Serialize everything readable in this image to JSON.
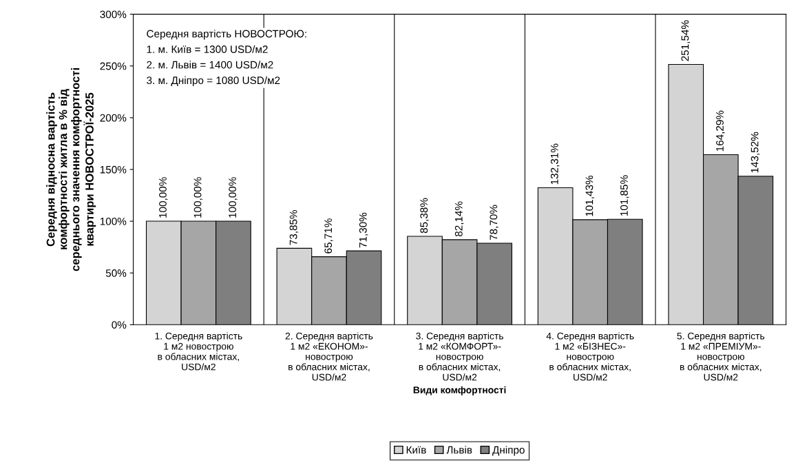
{
  "chart_data": {
    "type": "bar",
    "categories": [
      "1. Середня вартість\n1 м2 новострою\nв обласних містах,\nUSD/м2",
      "2. Середня вартість\n1 м2 «ЕКОНОМ»-\nновострою\nв обласних містах,\nUSD/м2",
      "3. Середня вартість\n1 м2 «КОМФОРТ»-\nновострою\nв обласних містах,\nUSD/м2",
      "4. Середня вартість\n1 м2 «БІЗНЕС»-\nновострою\nв обласних містах,\nUSD/м2",
      "5. Середня вартість\n1 м2 «ПРЕМІУМ»-\nновострою\nв обласних містах,\nUSD/м2"
    ],
    "series": [
      {
        "name": "Київ",
        "color": "#d4d4d4",
        "values": [
          100.0,
          73.85,
          85.38,
          132.31,
          251.54
        ],
        "value_labels": [
          "100,00%",
          "73,85%",
          "85,38%",
          "132,31%",
          "251,54%"
        ]
      },
      {
        "name": "Львів",
        "color": "#a6a6a6",
        "values": [
          100.0,
          65.71,
          82.14,
          101.43,
          164.29
        ],
        "value_labels": [
          "100,00%",
          "65,71%",
          "82,14%",
          "101,43%",
          "164,29%"
        ]
      },
      {
        "name": "Дніпро",
        "color": "#7f7f7f",
        "values": [
          100.0,
          71.3,
          78.7,
          101.85,
          143.52
        ],
        "value_labels": [
          "100,00%",
          "71,30%",
          "78,70%",
          "101,85%",
          "143,52%"
        ]
      }
    ],
    "xlabel": "Види комфортності",
    "ylabel": "Середня відносна вартість\nкомфортності житла в % від\nсереднього значення комфортності\nквартири НОВОСТРОЇ-2025",
    "ylim": [
      0,
      300
    ],
    "yticks": [
      {
        "value": 0,
        "label": "0%"
      },
      {
        "value": 50,
        "label": "50%"
      },
      {
        "value": 100,
        "label": "100%"
      },
      {
        "value": 150,
        "label": "150%"
      },
      {
        "value": 200,
        "label": "200%"
      },
      {
        "value": 250,
        "label": "250%"
      },
      {
        "value": 300,
        "label": "300%"
      }
    ],
    "annotations": [
      "Середня вартість НОВОСТРОЮ:\n1. м. Київ = 1300 USD/м2\n2. м. Львів = 1400 USD/м2\n3. м. Дніпро = 1080 USD/м2"
    ],
    "grid": "x",
    "legend": "bottom"
  }
}
